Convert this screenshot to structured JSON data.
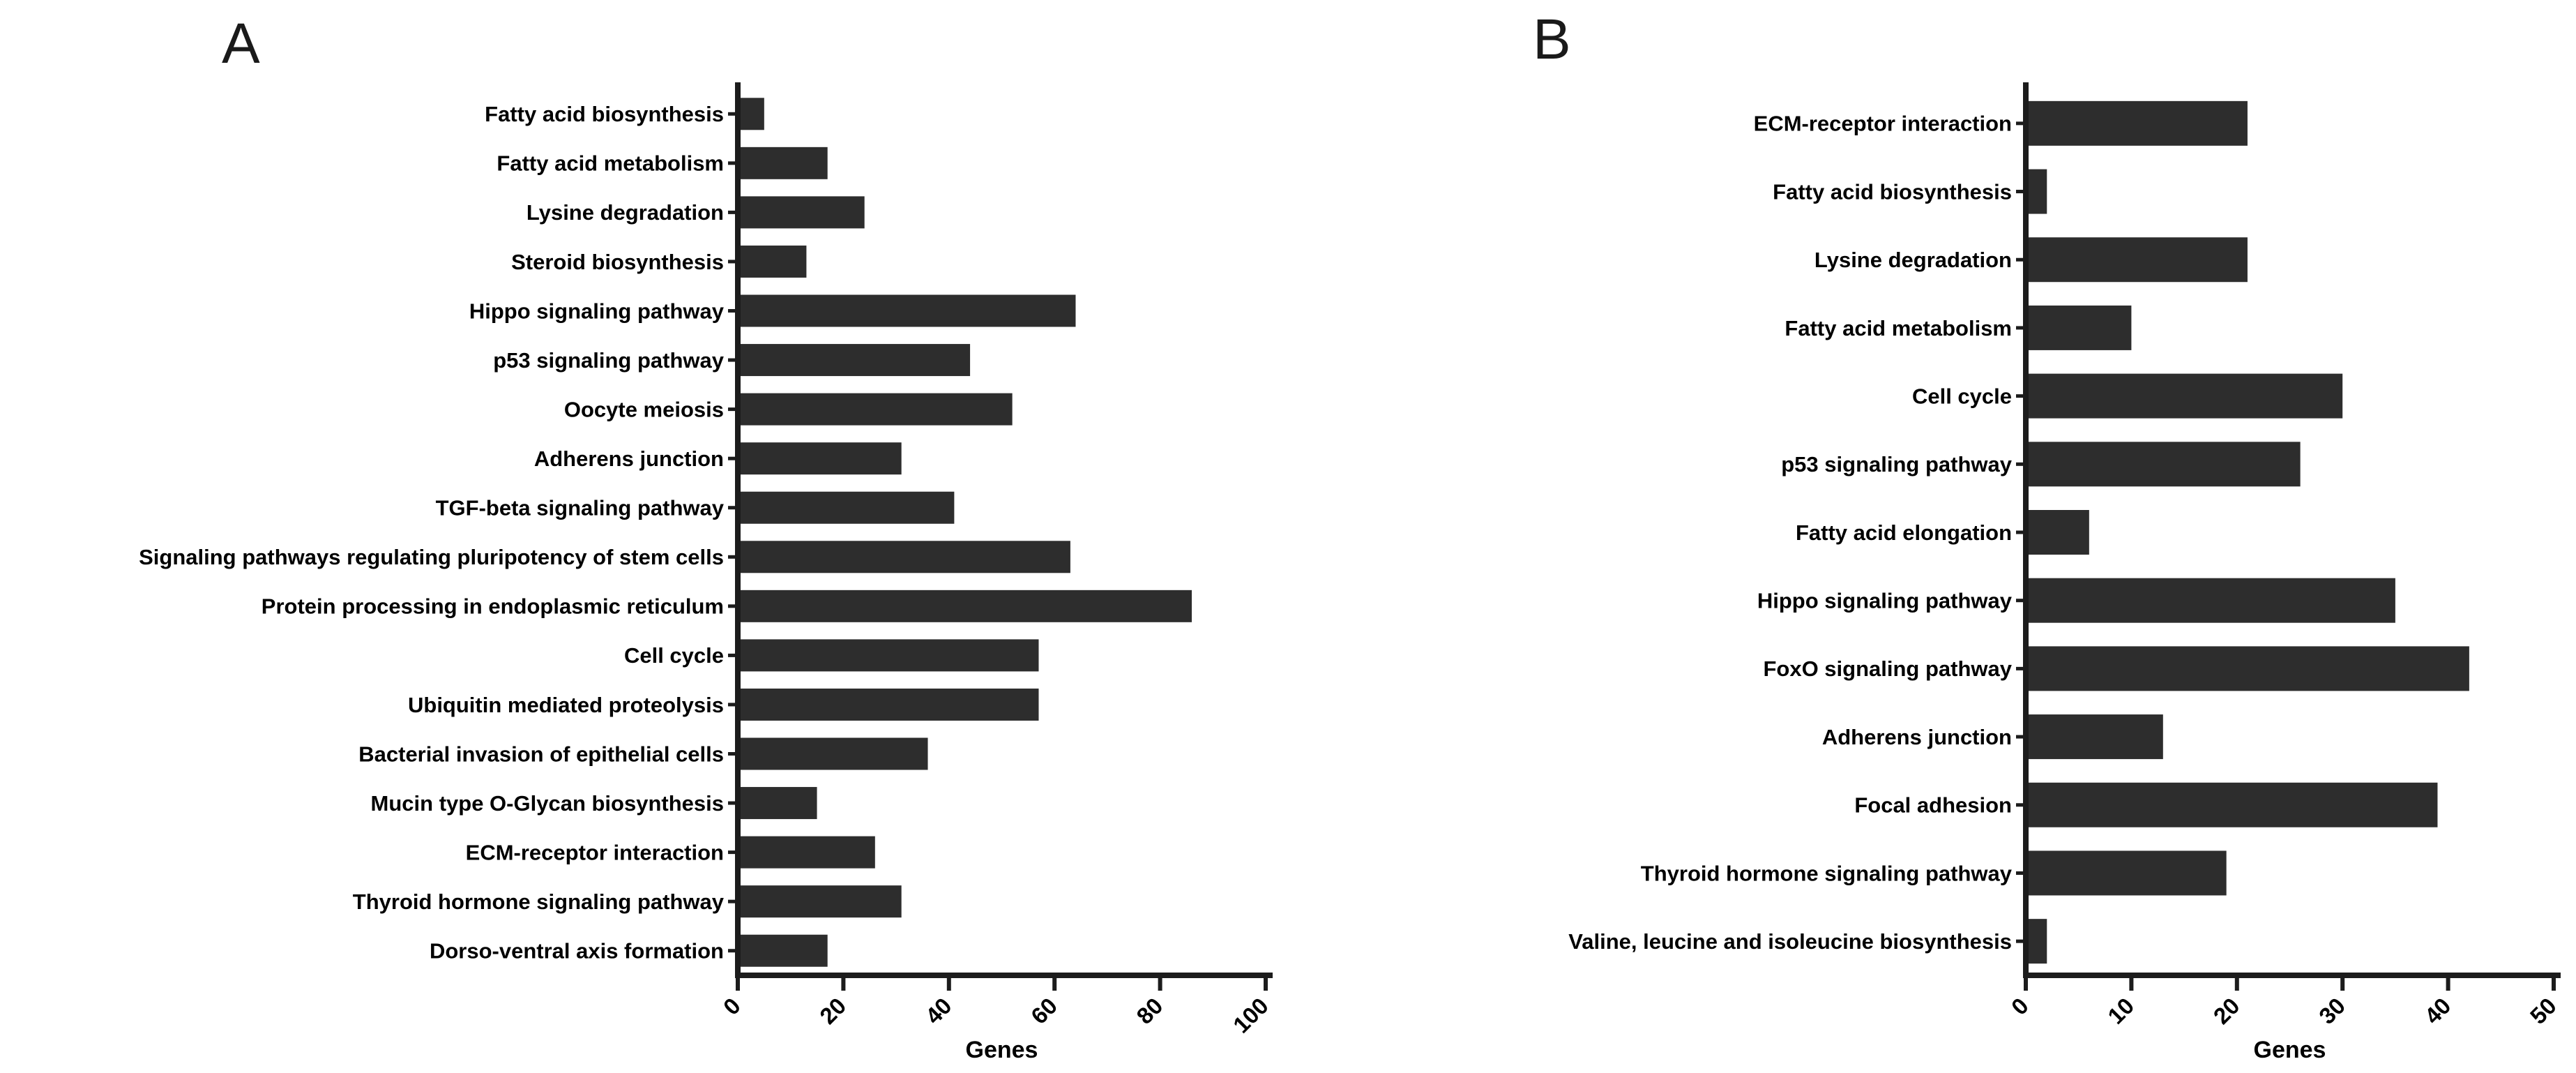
{
  "figure": {
    "background": "#ffffff",
    "bar_color": "#2d2d2d",
    "axis_color": "#1c1c1c",
    "text_color": "#000000"
  },
  "panels": [
    {
      "letter": "A"
    },
    {
      "letter": "B"
    }
  ],
  "chart_data": [
    {
      "type": "bar",
      "orientation": "horizontal",
      "title": "",
      "xlabel": "Genes",
      "ylabel": "",
      "xlim": [
        0,
        100
      ],
      "xticks": [
        0,
        20,
        40,
        60,
        80,
        100
      ],
      "grid": false,
      "legend": "none",
      "categories": [
        "Fatty acid biosynthesis",
        "Fatty acid metabolism",
        "Lysine degradation",
        "Steroid biosynthesis",
        "Hippo signaling pathway",
        "p53 signaling pathway",
        "Oocyte meiosis",
        "Adherens junction",
        "TGF-beta signaling pathway",
        "Signaling pathways regulating pluripotency of stem cells",
        "Protein processing in endoplasmic reticulum",
        "Cell cycle",
        "Ubiquitin mediated proteolysis",
        "Bacterial invasion of epithelial cells",
        "Mucin type O-Glycan biosynthesis",
        "ECM-receptor interaction",
        "Thyroid hormone signaling pathway",
        "Dorso-ventral axis formation"
      ],
      "values": [
        5,
        17,
        24,
        13,
        64,
        44,
        52,
        31,
        41,
        63,
        86,
        57,
        57,
        36,
        15,
        26,
        31,
        17
      ]
    },
    {
      "type": "bar",
      "orientation": "horizontal",
      "title": "",
      "xlabel": "Genes",
      "ylabel": "",
      "xlim": [
        0,
        50
      ],
      "xticks": [
        0,
        10,
        20,
        30,
        40,
        50
      ],
      "grid": false,
      "legend": "none",
      "categories": [
        "ECM-receptor interaction",
        "Fatty acid biosynthesis",
        "Lysine degradation",
        "Fatty acid metabolism",
        "Cell cycle",
        "p53 signaling pathway",
        "Fatty acid elongation",
        "Hippo signaling pathway",
        "FoxO signaling pathway",
        "Adherens junction",
        "Focal adhesion",
        "Thyroid hormone signaling pathway",
        "Valine, leucine and isoleucine biosynthesis"
      ],
      "values": [
        21,
        2,
        21,
        10,
        30,
        26,
        6,
        35,
        42,
        13,
        39,
        19,
        2
      ]
    }
  ]
}
